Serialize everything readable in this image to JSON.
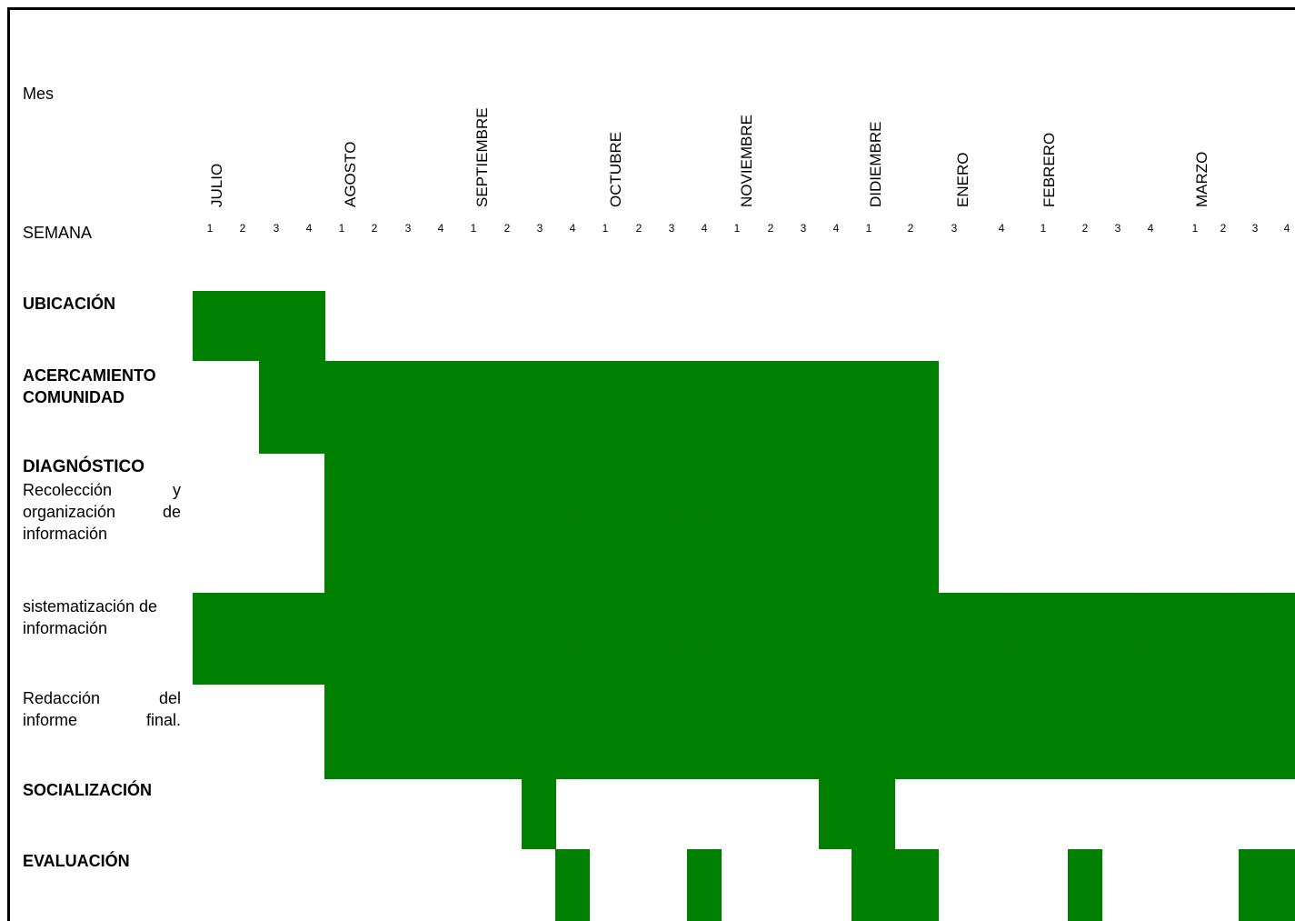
{
  "header": {
    "mes_label": "Mes",
    "semana_label": "SEMANA"
  },
  "months": [
    {
      "label": "JULIO",
      "weeks": [
        "1",
        "2",
        "3",
        "4"
      ]
    },
    {
      "label": "AGOSTO",
      "weeks": [
        "1",
        "2",
        "3",
        "4"
      ]
    },
    {
      "label": "SEPTIEMBRE",
      "weeks": [
        "1",
        "2",
        "3",
        "4"
      ]
    },
    {
      "label": "OCTUBRE",
      "weeks": [
        "1",
        "2",
        "3",
        "4"
      ]
    },
    {
      "label": "NOVIEMBRE",
      "weeks": [
        "1",
        "2",
        "3",
        "4"
      ]
    },
    {
      "label": "DIDIEMBRE",
      "weeks": [
        "1",
        "2"
      ]
    },
    {
      "label": "ENERO",
      "weeks": [
        "3",
        "4"
      ]
    },
    {
      "label": "FEBRERO",
      "weeks": [
        "1",
        "2",
        "3",
        "4"
      ]
    },
    {
      "label": "MARZO",
      "weeks": [
        "1",
        "2",
        "3",
        "4"
      ]
    }
  ],
  "activities": [
    {
      "title": "UBICACIÓN",
      "desc": ""
    },
    {
      "title": "ACERCAMIENTO COMUNIDAD",
      "desc": ""
    },
    {
      "title": "DIAGNÓSTICO",
      "desc": "Recolección y organización de información"
    },
    {
      "title": "",
      "desc": "sistematización de información"
    },
    {
      "title": "",
      "desc": "Redacción del informe final."
    },
    {
      "title": "SOCIALIZACIÓN",
      "desc": ""
    },
    {
      "title": "EVALUACIÓN",
      "desc": ""
    }
  ],
  "colors": {
    "bar": "#008000"
  }
}
